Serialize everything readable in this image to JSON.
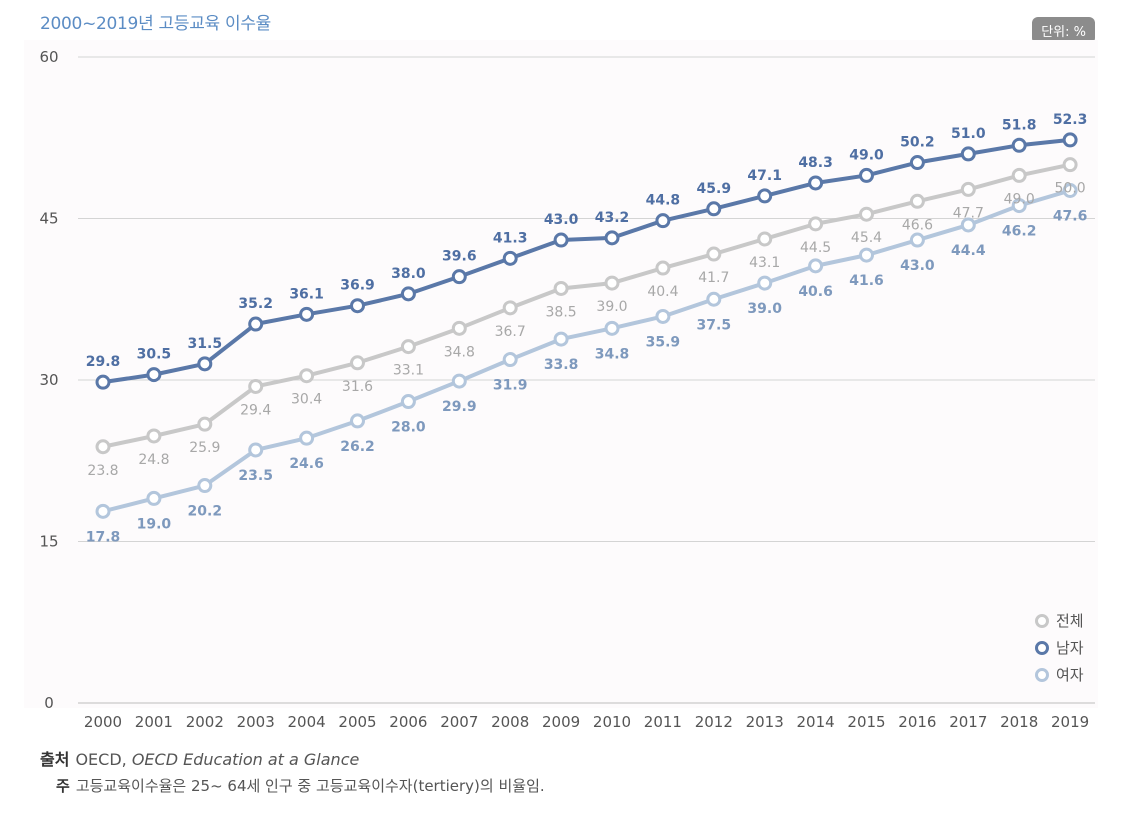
{
  "title": "2000~2019년 고등교육 이수율",
  "unit": "단위: %",
  "footer": {
    "source_label": "출처",
    "source_org": "OECD,",
    "source_publication": "OECD Education at a Glance",
    "note_label": "주",
    "note_text": "고등교육이수율은 25~ 64세 인구 중 고등교육이수자(tertiery)의 비율임."
  },
  "chart_data": {
    "type": "line",
    "title": "2000~2019년 고등교육 이수율",
    "xlabel": "",
    "ylabel": "",
    "ylim": [
      0,
      60
    ],
    "yticks": [
      0,
      15,
      30,
      45,
      60
    ],
    "grid": true,
    "legend_position": "bottom-right",
    "categories": [
      "2000",
      "2001",
      "2002",
      "2003",
      "2004",
      "2005",
      "2006",
      "2007",
      "2008",
      "2009",
      "2010",
      "2011",
      "2012",
      "2013",
      "2014",
      "2015",
      "2016",
      "2017",
      "2018",
      "2019"
    ],
    "series": [
      {
        "name": "전체",
        "color": "#c8c8c8",
        "label_color": "#a8a8a8",
        "values": [
          23.8,
          24.8,
          25.9,
          29.4,
          30.4,
          31.6,
          33.1,
          34.8,
          36.7,
          38.5,
          39.0,
          40.4,
          41.7,
          43.1,
          44.5,
          45.4,
          46.6,
          47.7,
          49.0,
          50.0
        ],
        "labels": [
          "23.8",
          "24.8",
          "25.9",
          "29.4",
          "30.4",
          "31.6",
          "33.1",
          "34.8",
          "36.7",
          "38.5",
          "39.0",
          "40.4",
          "41.7",
          "43.1",
          "44.5",
          "45.4",
          "46.6",
          "47.7",
          "49.0",
          "50.0"
        ]
      },
      {
        "name": "남자",
        "color": "#5a78a8",
        "label_color": "#4f6fa3",
        "values": [
          29.8,
          30.5,
          31.5,
          35.2,
          36.1,
          36.9,
          38.0,
          39.6,
          41.3,
          43.0,
          43.2,
          44.8,
          45.9,
          47.1,
          48.3,
          49.0,
          50.2,
          51.0,
          51.8,
          52.3
        ],
        "labels": [
          "29.8",
          "30.5",
          "31.5",
          "35.2",
          "36.1",
          "36.9",
          "38.0",
          "39.6",
          "41.3",
          "43.0",
          "43.2",
          "44.8",
          "45.9",
          "47.1",
          "48.3",
          "49.0",
          "50.2",
          "51.0",
          "51.8",
          "52.3"
        ]
      },
      {
        "name": "여자",
        "color": "#b3c6dc",
        "label_color": "#7e99bd",
        "values": [
          17.8,
          19.0,
          20.2,
          23.5,
          24.6,
          26.2,
          28.0,
          29.9,
          31.9,
          33.8,
          34.8,
          35.9,
          37.5,
          39.0,
          40.6,
          41.6,
          43.0,
          44.4,
          46.2,
          47.6
        ],
        "labels": [
          "17.8",
          "19.0",
          "20.2",
          "23.5",
          "24.6",
          "26.2",
          "28.0",
          "29.9",
          "31.9",
          "33.8",
          "34.8",
          "35.9",
          "37.5",
          "39.0",
          "40.6",
          "41.6",
          "43.0",
          "44.4",
          "46.2",
          "47.6"
        ]
      }
    ]
  }
}
